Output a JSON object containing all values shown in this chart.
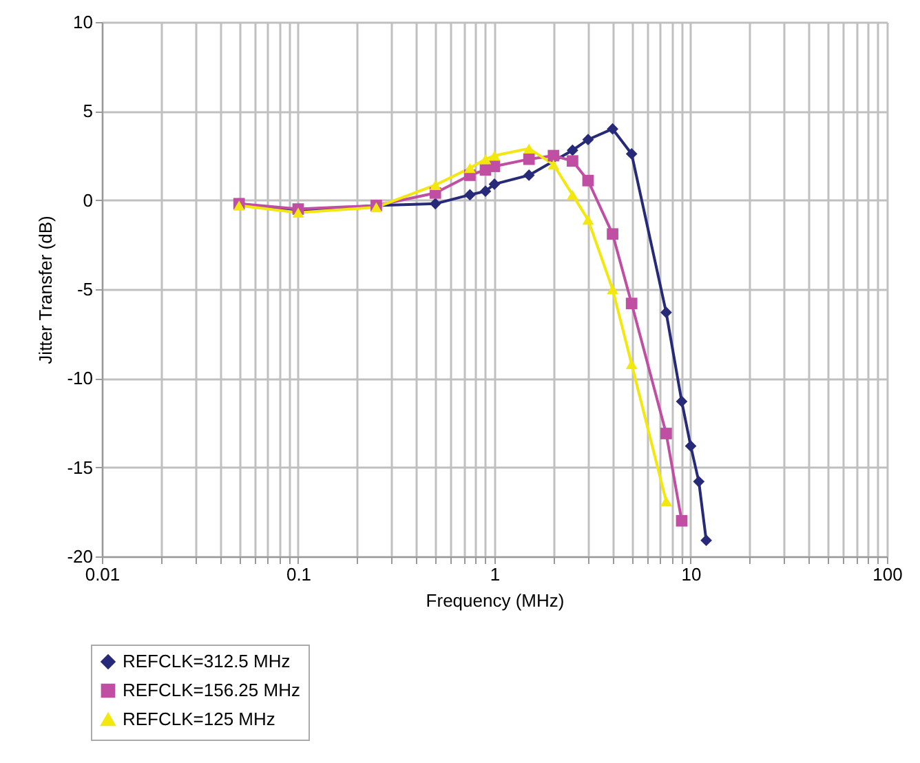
{
  "chart_data": {
    "type": "line",
    "xlabel": "Frequency (MHz)",
    "ylabel": "Jitter Transfer (dB)",
    "log": "x",
    "xlim": [
      0.01,
      100
    ],
    "ylim": [
      -20,
      10
    ],
    "xticks": [
      0.01,
      {
        "value": 0.02,
        "label": null
      },
      {
        "value": 0.03,
        "label": null
      },
      {
        "value": 0.04,
        "label": null
      },
      {
        "value": 0.05,
        "label": null
      },
      {
        "value": 0.06,
        "label": null
      },
      {
        "value": 0.07,
        "label": null
      },
      {
        "value": 0.08,
        "label": null
      },
      {
        "value": 0.09,
        "label": null
      },
      0.1,
      {
        "value": 0.2,
        "label": null
      },
      {
        "value": 0.3,
        "label": null
      },
      {
        "value": 0.4,
        "label": null
      },
      {
        "value": 0.5,
        "label": null
      },
      {
        "value": 0.6,
        "label": null
      },
      {
        "value": 0.7,
        "label": null
      },
      {
        "value": 0.8,
        "label": null
      },
      {
        "value": 0.9,
        "label": null
      },
      1,
      {
        "value": 2,
        "label": null
      },
      {
        "value": 3,
        "label": null
      },
      {
        "value": 4,
        "label": null
      },
      {
        "value": 5,
        "label": null
      },
      {
        "value": 6,
        "label": null
      },
      {
        "value": 7,
        "label": null
      },
      {
        "value": 8,
        "label": null
      },
      {
        "value": 9,
        "label": null
      },
      10,
      {
        "value": 20,
        "label": null
      },
      {
        "value": 30,
        "label": null
      },
      {
        "value": 40,
        "label": null
      },
      {
        "value": 50,
        "label": null
      },
      {
        "value": 60,
        "label": null
      },
      {
        "value": 70,
        "label": null
      },
      {
        "value": 80,
        "label": null
      },
      {
        "value": 90,
        "label": null
      },
      100
    ],
    "yticks": [
      -20,
      -15,
      -10,
      -5,
      0,
      5,
      10
    ],
    "grid": true,
    "legend": "bottom left",
    "line_style": "solid",
    "series": [
      {
        "name": "REFCLK=312.5 MHz",
        "color": "#262a78",
        "marker": "diamond",
        "x": [
          0.05,
          0.1,
          0.25,
          0.5,
          0.75,
          0.9,
          1,
          1.5,
          2.5,
          3,
          4,
          5,
          7.5,
          9,
          10,
          11,
          12
        ],
        "values": [
          -0.2,
          -0.6,
          -0.3,
          -0.2,
          0.3,
          0.5,
          0.9,
          1.4,
          2.8,
          3.4,
          4.0,
          2.6,
          -6.3,
          -11.3,
          -13.8,
          -15.8,
          -19.1
        ]
      },
      {
        "name": "REFCLK=156.25 MHz",
        "color": "#c04fa3",
        "marker": "square",
        "x": [
          0.05,
          0.1,
          0.25,
          0.5,
          0.75,
          0.9,
          1,
          1.5,
          2,
          2.5,
          3,
          4,
          5,
          7.5,
          9
        ],
        "values": [
          -0.2,
          -0.5,
          -0.3,
          0.4,
          1.4,
          1.7,
          1.9,
          2.3,
          2.5,
          2.2,
          1.1,
          -1.9,
          -5.8,
          -13.1,
          -18.0
        ]
      },
      {
        "name": "REFCLK=125 MHz",
        "color": "#f2e80f",
        "marker": "triangle",
        "x": [
          0.05,
          0.1,
          0.25,
          0.5,
          0.75,
          0.9,
          1,
          1.5,
          2,
          2.5,
          3,
          4,
          5,
          7.5
        ],
        "values": [
          -0.3,
          -0.7,
          -0.4,
          0.85,
          1.8,
          2.3,
          2.5,
          2.9,
          2.0,
          0.3,
          -1.1,
          -5.0,
          -9.2,
          -16.9
        ]
      }
    ]
  }
}
